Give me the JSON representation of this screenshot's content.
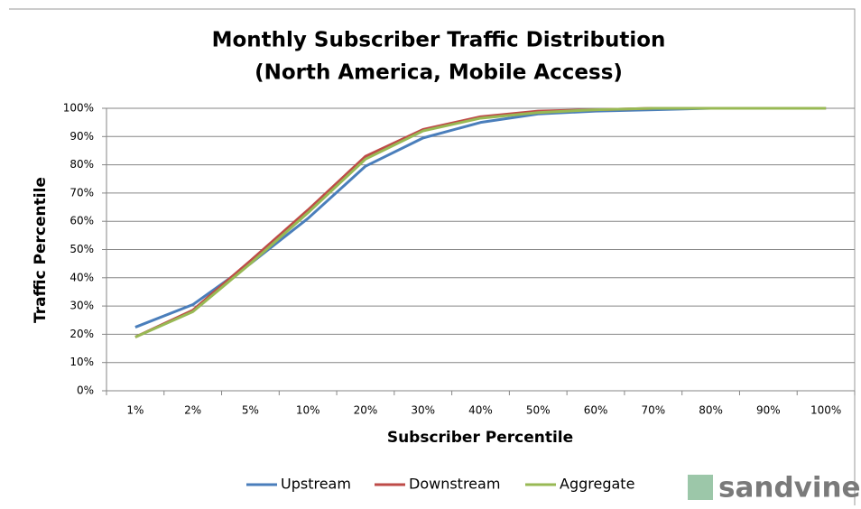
{
  "chart_data": {
    "type": "line",
    "title": "Monthly Subscriber Traffic Distribution",
    "subtitle": "(North America, Mobile Access)",
    "x_label": "Subscriber Percentile",
    "y_label": "Traffic Percentile",
    "categories": [
      "1%",
      "2%",
      "5%",
      "10%",
      "20%",
      "30%",
      "40%",
      "50%",
      "60%",
      "70%",
      "80%",
      "90%",
      "100%"
    ],
    "series": [
      {
        "name": "Upstream",
        "color": "#4a7ebb",
        "values": [
          22.5,
          30.5,
          45,
          61,
          79.5,
          89.5,
          95,
          98,
          99,
          99.5,
          100,
          100,
          100
        ]
      },
      {
        "name": "Downstream",
        "color": "#be4b48",
        "values": [
          19,
          28.5,
          46,
          64,
          83,
          92.5,
          97,
          99,
          99.5,
          100,
          100,
          100,
          100
        ]
      },
      {
        "name": "Aggregate",
        "color": "#98b954",
        "values": [
          19,
          28,
          45,
          63,
          82,
          92,
          96.5,
          98.5,
          99.5,
          100,
          100,
          100,
          100
        ]
      }
    ],
    "ylim": [
      0,
      100
    ],
    "yticks": [
      {
        "value": 0,
        "label": "0%"
      },
      {
        "value": 10,
        "label": "10%"
      },
      {
        "value": 20,
        "label": "20%"
      },
      {
        "value": 30,
        "label": "30%"
      },
      {
        "value": 40,
        "label": "40%"
      },
      {
        "value": 50,
        "label": "50%"
      },
      {
        "value": 60,
        "label": "60%"
      },
      {
        "value": 70,
        "label": "70%"
      },
      {
        "value": 80,
        "label": "80%"
      },
      {
        "value": 90,
        "label": "90%"
      },
      {
        "value": 100,
        "label": "100%"
      }
    ],
    "grid": true,
    "legend": "bottom",
    "logo": "sandvine"
  }
}
